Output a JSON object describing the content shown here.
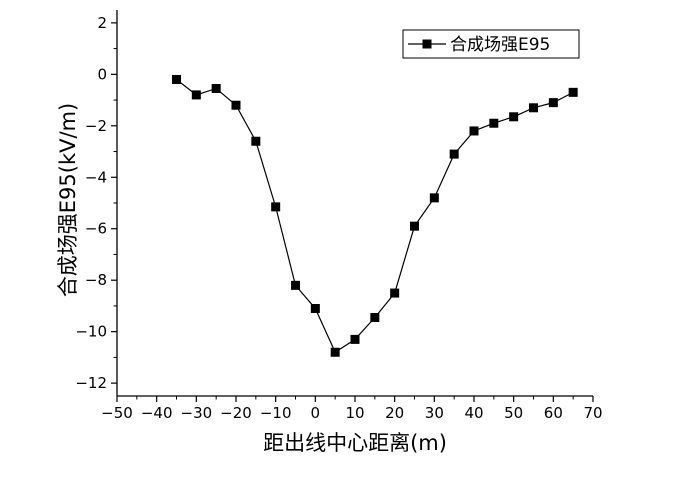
{
  "chart_data": {
    "type": "line",
    "xlabel": "距出线中心距离(m)",
    "ylabel": "合成场强E95(kV/m)",
    "xlim": [
      -50,
      70
    ],
    "ylim": [
      -12.5,
      2.5
    ],
    "xticks": [
      -50,
      -40,
      -30,
      -20,
      -10,
      0,
      10,
      20,
      30,
      40,
      50,
      60,
      70
    ],
    "yticks": [
      2,
      0,
      -2,
      -4,
      -6,
      -8,
      -10,
      -12
    ],
    "xtick_labels": [
      "−50",
      "−40",
      "−30",
      "−20",
      "−10",
      "0",
      "10",
      "20",
      "30",
      "40",
      "50",
      "60",
      "70"
    ],
    "ytick_labels": [
      "2",
      "0",
      "−2",
      "−4",
      "−6",
      "−8",
      "−10",
      "−12"
    ],
    "grid": false,
    "legend_position": "top-right",
    "series": [
      {
        "name": "合成场强E95",
        "color": "#000000",
        "marker": "square",
        "x": [
          -35,
          -30,
          -25,
          -20,
          -15,
          -10,
          -5,
          0,
          5,
          10,
          15,
          20,
          25,
          30,
          35,
          40,
          45,
          50,
          55,
          60,
          65
        ],
        "y": [
          -0.2,
          -0.8,
          -0.55,
          -1.2,
          -2.6,
          -5.15,
          -8.2,
          -9.1,
          -10.8,
          -10.3,
          -9.45,
          -8.5,
          -5.9,
          -4.8,
          -3.1,
          -2.2,
          -1.9,
          -1.65,
          -1.3,
          -1.1,
          -0.7
        ]
      }
    ]
  }
}
